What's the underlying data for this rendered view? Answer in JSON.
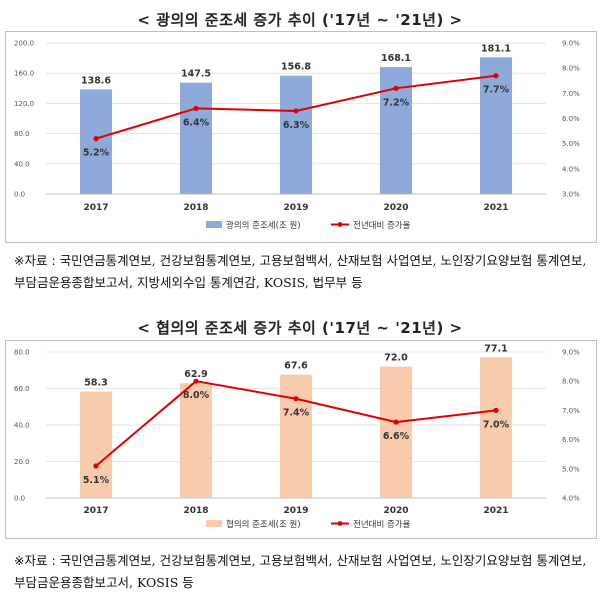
{
  "charts": [
    {
      "title": "< 광의의 준조세 증가 추이 ('17년 ~ '21년) >",
      "source_lead": "※자료 :",
      "source_text": "국민연금통계연보, 건강보험통계연보, 고용보험백서, 산재보험 사업연보, 노인장기요양보험 통계연보, 부담금운용종합보고서, 지방세외수입 통계연감, KOSIS, 법무부 등",
      "bar_color": "#8eaadb",
      "line_color": "#e00000"
    },
    {
      "title": "< 협의의 준조세 증가 추이 ('17년 ~ '21년) >",
      "source_lead": "※자료 :",
      "source_text": "국민연금통계연보, 건강보험통계연보, 고용보험백서, 산재보험 사업연보, 노인장기요양보험 통계연보, 부담금운용종합보고서, KOSIS 등",
      "bar_color": "#f8cbad",
      "line_color": "#e00000"
    }
  ],
  "chart_data": [
    {
      "type": "bar",
      "title": "< 광의의 준조세 증가 추이 ('17년 ~ '21년) >",
      "categories": [
        "2017",
        "2018",
        "2019",
        "2020",
        "2021"
      ],
      "series": [
        {
          "name": "광의의 준조세(조 원)",
          "type": "bar",
          "axis": "left",
          "values": [
            138.6,
            147.5,
            156.8,
            168.1,
            181.1
          ],
          "labels": [
            "138.6",
            "147.5",
            "156.8",
            "168.1",
            "181.1"
          ]
        },
        {
          "name": "전년대비 증가율",
          "type": "line",
          "axis": "right",
          "values": [
            5.2,
            6.4,
            6.3,
            7.2,
            7.7
          ],
          "labels": [
            "5.2%",
            "6.4%",
            "6.3%",
            "7.2%",
            "7.7%"
          ]
        }
      ],
      "ylim": [
        0,
        200
      ],
      "yticks": [
        "0.0",
        "40.0",
        "80.0",
        "120.0",
        "160.0",
        "200.0"
      ],
      "y2lim": [
        3,
        9
      ],
      "y2ticks": [
        "3.0%",
        "4.0%",
        "5.0%",
        "6.0%",
        "7.0%",
        "8.0%",
        "9.0%"
      ],
      "legend": "bottom"
    },
    {
      "type": "bar",
      "title": "< 협의의 준조세 증가 추이 ('17년 ~ '21년) >",
      "categories": [
        "2017",
        "2018",
        "2019",
        "2020",
        "2021"
      ],
      "series": [
        {
          "name": "협의의 준조세(조 원)",
          "type": "bar",
          "axis": "left",
          "values": [
            58.3,
            62.9,
            67.6,
            72.0,
            77.1
          ],
          "labels": [
            "58.3",
            "62.9",
            "67.6",
            "72.0",
            "77.1"
          ]
        },
        {
          "name": "전년대비 증가율",
          "type": "line",
          "axis": "right",
          "values": [
            5.1,
            8.0,
            7.4,
            6.6,
            7.0
          ],
          "labels": [
            "5.1%",
            "8.0%",
            "7.4%",
            "6.6%",
            "7.0%"
          ]
        }
      ],
      "ylim": [
        0,
        80
      ],
      "yticks": [
        "0.0",
        "20.0",
        "40.0",
        "60.0",
        "80.0"
      ],
      "y2lim": [
        4,
        9
      ],
      "y2ticks": [
        "4.0%",
        "5.0%",
        "6.0%",
        "7.0%",
        "8.0%",
        "9.0%"
      ],
      "legend": "bottom"
    }
  ]
}
